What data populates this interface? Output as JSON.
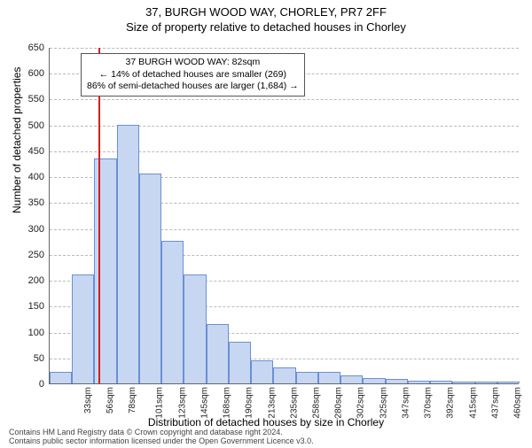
{
  "titles": {
    "main": "37, BURGH WOOD WAY, CHORLEY, PR7 2FF",
    "sub": "Size of property relative to detached houses in Chorley"
  },
  "ylabel": "Number of detached properties",
  "xlabel": "Distribution of detached houses by size in Chorley",
  "chart": {
    "type": "histogram",
    "ylim": [
      0,
      650
    ],
    "ytick_step": 50,
    "bar_fill": "#c7d7f2",
    "bar_stroke": "#6a8fd6",
    "grid_color": "#bbbbbb",
    "bin_width_sqm": 22.5,
    "x_start_sqm": 33,
    "xticks_labels": [
      "33sqm",
      "56sqm",
      "78sqm",
      "101sqm",
      "123sqm",
      "145sqm",
      "168sqm",
      "190sqm",
      "213sqm",
      "235sqm",
      "258sqm",
      "280sqm",
      "302sqm",
      "325sqm",
      "347sqm",
      "370sqm",
      "392sqm",
      "415sqm",
      "437sqm",
      "460sqm",
      "482sqm"
    ],
    "values": [
      22,
      210,
      435,
      500,
      405,
      275,
      210,
      115,
      80,
      45,
      30,
      22,
      22,
      15,
      10,
      8,
      6,
      5,
      4,
      3,
      3
    ],
    "reference_line": {
      "sqm": 82,
      "color": "#d42020"
    }
  },
  "annotation": {
    "line1": "37 BURGH WOOD WAY: 82sqm",
    "line2": "← 14% of detached houses are smaller (269)",
    "line3": "86% of semi-detached houses are larger (1,684) →"
  },
  "footer": {
    "line1": "Contains HM Land Registry data © Crown copyright and database right 2024.",
    "line2": "Contains public sector information licensed under the Open Government Licence v3.0."
  }
}
